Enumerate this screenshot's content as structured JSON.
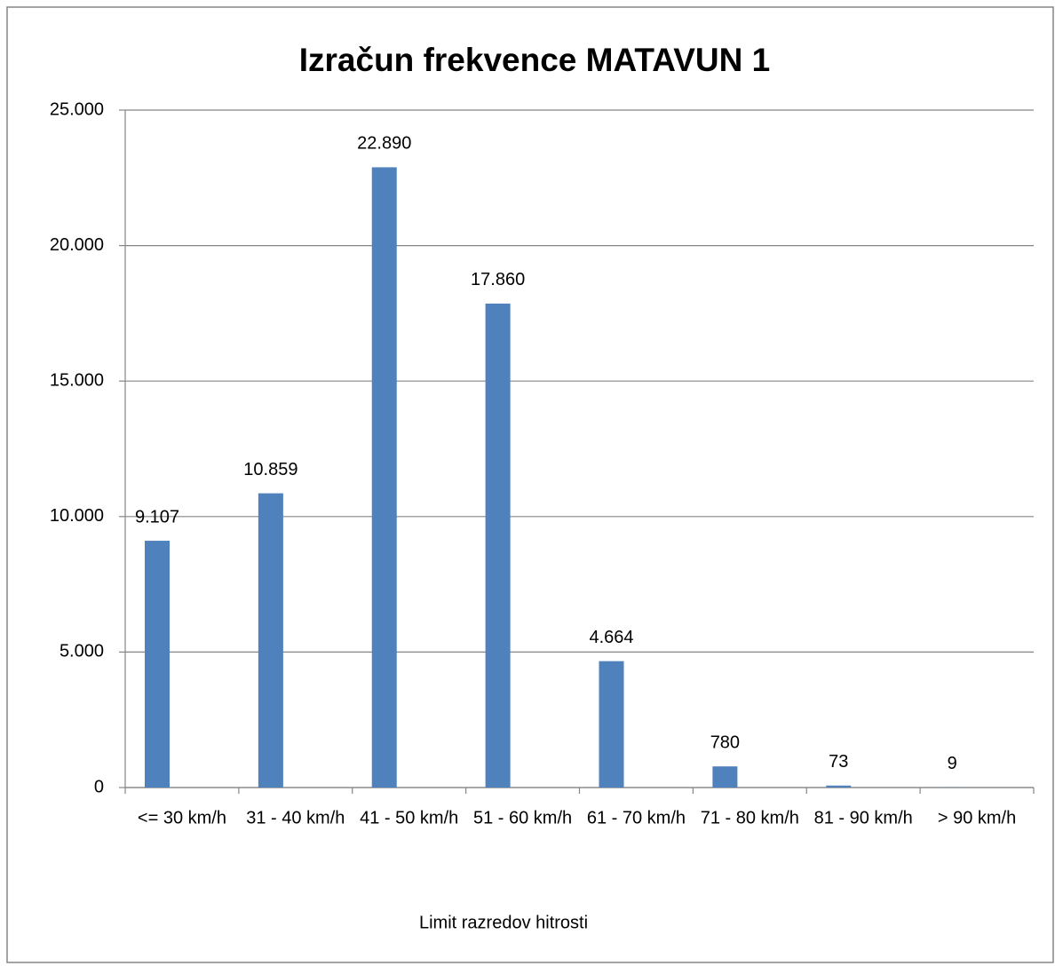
{
  "chart_data": {
    "type": "bar",
    "title": "Izračun frekvence MATAVUN 1",
    "x_label": "Limit razredov hitrosti",
    "categories": [
      "<= 30 km/h",
      "31 - 40 km/h",
      "41 - 50 km/h",
      "51 - 60 km/h",
      "61 - 70 km/h",
      "71 - 80 km/h",
      "81 - 90 km/h",
      "> 90 km/h"
    ],
    "values": [
      9107,
      10859,
      22890,
      17860,
      4664,
      780,
      73,
      9
    ],
    "value_labels": [
      "9.107",
      "10.859",
      "22.890",
      "17.860",
      "4.664",
      "780",
      "73",
      "9"
    ],
    "color": "#4f81bd",
    "ylim": [
      0,
      25000
    ],
    "yticks": [
      0,
      {
        "value": 5000,
        "label": "5.000"
      },
      {
        "value": 10000,
        "label": "10.000"
      },
      {
        "value": 15000,
        "label": "15.000"
      },
      {
        "value": 20000,
        "label": "20.000"
      },
      {
        "value": 25000,
        "label": "25.000"
      }
    ],
    "grid": true
  }
}
